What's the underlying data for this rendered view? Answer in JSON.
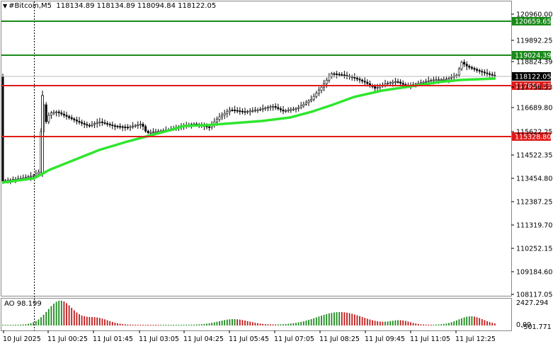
{
  "header": {
    "symbol_icon": "triangle-down-icon",
    "symbol": "#Bitcoin,M5",
    "ohlc": "118134.89 118134.89 118094.84 118122.05"
  },
  "price_axis": {
    "ticks": [
      "120960.00",
      "119892.25",
      "118824.39",
      "117756.53",
      "116689.80",
      "115622.25",
      "114522.35",
      "113454.80",
      "112387.25",
      "111319.70",
      "110252.15",
      "109184.60",
      "108117.05"
    ]
  },
  "levels": [
    {
      "label": "120659.65",
      "color": "#1a8a1a"
    },
    {
      "label": "119024.39",
      "color": "#1a8a1a"
    },
    {
      "label": "117659.33",
      "color": "#e01a1a"
    },
    {
      "label": "115328.80",
      "color": "#e01a1a"
    }
  ],
  "current_price": {
    "label": "118122.05",
    "color": "#000000"
  },
  "time_axis": {
    "labels": [
      "10 Jul 2025",
      "11 Jul 00:25",
      "11 Jul 01:45",
      "11 Jul 03:05",
      "11 Jul 04:25",
      "11 Jul 05:45",
      "11 Jul 07:05",
      "11 Jul 08:25",
      "11 Jul 09:45",
      "11 Jul 11:05",
      "11 Jul 12:25"
    ]
  },
  "ao": {
    "label": "AO 98.199",
    "scale_top": "2427.294",
    "scale_zero": "0.00",
    "scale_bottom": "-501.771"
  },
  "colors": {
    "ma": "#2ee62e",
    "ao_up": "#1a8a1a",
    "ao_down": "#c01a1a"
  }
}
